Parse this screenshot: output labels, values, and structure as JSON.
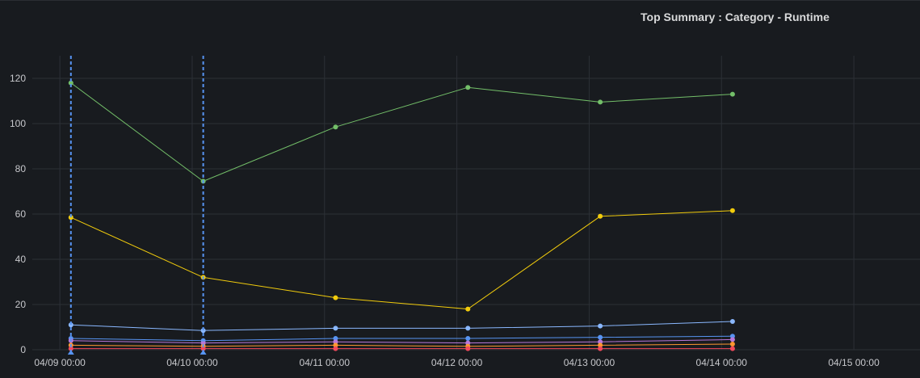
{
  "panel": {
    "title": "Top Summary : Category - Runtime"
  },
  "chart_data": {
    "type": "line",
    "title": "Top Summary : Category - Runtime",
    "x_type": "time",
    "xlim": [
      "04/08 19:00",
      "04/15 12:00"
    ],
    "ylim": [
      0,
      130
    ],
    "x_ticks": [
      "04/09 00:00",
      "04/10 00:00",
      "04/11 00:00",
      "04/12 00:00",
      "04/13 00:00",
      "04/14 00:00",
      "04/15 00:00"
    ],
    "y_ticks": [
      0,
      20,
      40,
      60,
      80,
      100,
      120
    ],
    "grid": true,
    "legend": "none",
    "annotations": [
      {
        "type": "vertical-dashed-line",
        "x": "04/09 02:00",
        "color": "#5794f2"
      },
      {
        "type": "vertical-dashed-line",
        "x": "04/10 02:00",
        "color": "#5794f2"
      }
    ],
    "x": [
      "04/09 02:00",
      "04/10 02:00",
      "04/11 02:00",
      "04/12 02:00",
      "04/13 02:00",
      "04/14 02:00"
    ],
    "series": [
      {
        "color": "#73bf69",
        "values": [
          118,
          74.5,
          98.5,
          116,
          109.5,
          113
        ]
      },
      {
        "color": "#f2cc0c",
        "values": [
          58.5,
          32,
          23,
          18,
          59,
          61.5
        ]
      },
      {
        "color": "#8ab8ff",
        "values": [
          11,
          8.5,
          9.5,
          9.5,
          10.5,
          12.5
        ]
      },
      {
        "color": "#5794f2",
        "values": [
          5,
          4,
          5,
          5,
          5.5,
          6
        ]
      },
      {
        "color": "#b877d9",
        "values": [
          4,
          3,
          3.5,
          3,
          3.5,
          4.5
        ]
      },
      {
        "color": "#ff9830",
        "values": [
          2,
          1.5,
          2,
          1.5,
          2,
          2.5
        ]
      },
      {
        "color": "#f2495c",
        "values": [
          0.5,
          0.5,
          0.5,
          0.5,
          0.5,
          0.5
        ]
      }
    ]
  }
}
